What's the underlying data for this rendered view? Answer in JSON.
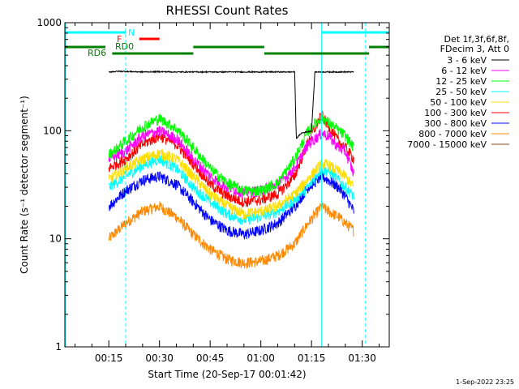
{
  "chart_data": {
    "type": "line",
    "title": "RHESSI Count Rates",
    "xlabel": "Start Time (20-Sep-17 00:01:42)",
    "ylabel": "Count Rate (s⁻¹ detector segment⁻¹)",
    "yscale": "log",
    "ylim": [
      1,
      1000
    ],
    "yticks": [
      "1",
      "10",
      "100",
      "1000"
    ],
    "xlim_minutes": [
      2,
      40
    ],
    "xticks": [
      "00:15",
      "00:30",
      "00:45",
      "01:00",
      "01:15",
      "01:30"
    ],
    "xtick_minutes": [
      15,
      30,
      45,
      60,
      75,
      90
    ],
    "legend_header": [
      "Det 1f,3f,6f,8f,",
      "FDecim 3, Att 0"
    ],
    "series": [
      {
        "name": "3 - 6 keV",
        "color": "#000000",
        "x": [
          15,
          18,
          25,
          30,
          35,
          40,
          50,
          55,
          60,
          65,
          69,
          70,
          70.5,
          72,
          75,
          76,
          80,
          85,
          87.5
        ],
        "y": [
          350,
          355,
          350,
          352,
          350,
          350,
          350,
          350,
          350,
          350,
          350,
          350,
          85,
          95,
          100,
          350,
          350,
          350,
          350
        ]
      },
      {
        "name": "6 - 12 keV",
        "color": "#ff00ff",
        "x": [
          15,
          20,
          25,
          30,
          35,
          40,
          45,
          50,
          55,
          60,
          65,
          70,
          74,
          78,
          80,
          83,
          85,
          87.5
        ],
        "y": [
          55,
          65,
          90,
          100,
          85,
          55,
          38,
          30,
          27,
          28,
          32,
          45,
          75,
          95,
          90,
          70,
          65,
          40
        ]
      },
      {
        "name": "12 - 25 keV",
        "color": "#00ff00",
        "x": [
          15,
          20,
          25,
          30,
          35,
          40,
          45,
          50,
          55,
          60,
          65,
          70,
          74,
          78,
          80,
          83,
          85,
          87.5
        ],
        "y": [
          60,
          80,
          110,
          130,
          105,
          70,
          45,
          33,
          28,
          28,
          33,
          55,
          100,
          135,
          120,
          100,
          90,
          70
        ]
      },
      {
        "name": "25 - 50 keV",
        "color": "#00ffff",
        "x": [
          15,
          20,
          25,
          30,
          35,
          40,
          45,
          50,
          55,
          60,
          65,
          70,
          74,
          78,
          80,
          83,
          85,
          87.5
        ],
        "y": [
          30,
          38,
          48,
          55,
          45,
          30,
          22,
          17,
          15,
          16,
          18,
          23,
          30,
          45,
          42,
          35,
          30,
          25
        ]
      },
      {
        "name": "50 - 100 keV",
        "color": "#ffdd00",
        "x": [
          15,
          20,
          25,
          30,
          35,
          40,
          45,
          50,
          55,
          60,
          65,
          70,
          74,
          78,
          80,
          83,
          85,
          87.5
        ],
        "y": [
          35,
          45,
          55,
          62,
          55,
          38,
          26,
          20,
          17,
          18,
          20,
          26,
          36,
          50,
          48,
          42,
          38,
          30
        ]
      },
      {
        "name": "100 - 300 keV",
        "color": "#ff0000",
        "x": [
          15,
          20,
          25,
          30,
          35,
          40,
          45,
          50,
          55,
          60,
          65,
          70,
          74,
          78,
          80,
          83,
          85,
          87.5
        ],
        "y": [
          45,
          55,
          75,
          90,
          75,
          50,
          32,
          25,
          22,
          23,
          26,
          38,
          80,
          140,
          110,
          80,
          70,
          55
        ]
      },
      {
        "name": "300 - 800 keV",
        "color": "#0000ff",
        "x": [
          15,
          20,
          25,
          30,
          35,
          40,
          45,
          50,
          55,
          60,
          65,
          70,
          74,
          78,
          80,
          83,
          85,
          87.5
        ],
        "y": [
          20,
          28,
          35,
          38,
          32,
          22,
          15,
          12,
          11,
          12,
          14,
          20,
          30,
          38,
          35,
          30,
          25,
          18
        ]
      },
      {
        "name": "800 - 7000 keV",
        "color": "#ff8800",
        "x": [
          15,
          20,
          25,
          30,
          35,
          40,
          45,
          50,
          55,
          60,
          65,
          70,
          74,
          78,
          80,
          83,
          85,
          87.5
        ],
        "y": [
          10,
          14,
          18,
          20,
          16,
          11,
          8,
          6.5,
          6,
          6.2,
          7,
          9,
          14,
          20,
          18,
          16,
          14,
          12
        ]
      },
      {
        "name": "7000 - 15000 keV",
        "color": "#8b4513",
        "x": [],
        "y": []
      }
    ],
    "annotations": [
      {
        "text": "N",
        "color": "#00ffff"
      },
      {
        "text": "F",
        "color": "#ff0000"
      },
      {
        "text": "RD0",
        "color": "#008000"
      },
      {
        "text": "RD6",
        "color": "#008000"
      }
    ],
    "vertical_lines": [
      {
        "x_minutes": 20,
        "style": "dashed",
        "color": "#00ffff"
      },
      {
        "x_minutes": 78,
        "style": "solid",
        "color": "#00ffff"
      },
      {
        "x_minutes": 91,
        "style": "dashed",
        "color": "#00ffff"
      }
    ],
    "footer": "1-Sep-2022 23:25",
    "grid": false,
    "legend_position": "right"
  }
}
